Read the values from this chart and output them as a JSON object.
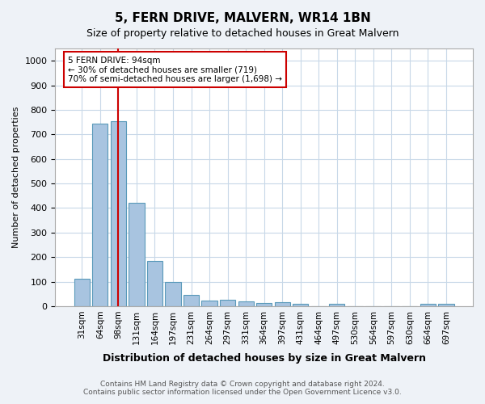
{
  "title": "5, FERN DRIVE, MALVERN, WR14 1BN",
  "subtitle": "Size of property relative to detached houses in Great Malvern",
  "xlabel": "Distribution of detached houses by size in Great Malvern",
  "ylabel": "Number of detached properties",
  "categories": [
    "31sqm",
    "64sqm",
    "98sqm",
    "131sqm",
    "164sqm",
    "197sqm",
    "231sqm",
    "264sqm",
    "297sqm",
    "331sqm",
    "364sqm",
    "397sqm",
    "431sqm",
    "464sqm",
    "497sqm",
    "530sqm",
    "564sqm",
    "597sqm",
    "630sqm",
    "664sqm",
    "697sqm"
  ],
  "values": [
    110,
    745,
    755,
    420,
    185,
    98,
    45,
    22,
    25,
    18,
    12,
    15,
    8,
    0,
    8,
    0,
    0,
    0,
    0,
    8,
    8
  ],
  "bar_color": "#a8c4e0",
  "bar_edge_color": "#5a9aba",
  "vline_x": 2,
  "vline_color": "#cc0000",
  "annotation_text": "5 FERN DRIVE: 94sqm\n← 30% of detached houses are smaller (719)\n70% of semi-detached houses are larger (1,698) →",
  "annotation_box_color": "#ffffff",
  "annotation_box_edge_color": "#cc0000",
  "ylim": [
    0,
    1050
  ],
  "yticks": [
    0,
    100,
    200,
    300,
    400,
    500,
    600,
    700,
    800,
    900,
    1000
  ],
  "footer_line1": "Contains HM Land Registry data © Crown copyright and database right 2024.",
  "footer_line2": "Contains public sector information licensed under the Open Government Licence v3.0.",
  "bg_color": "#eef2f7",
  "plot_bg_color": "#ffffff",
  "grid_color": "#c8d8e8"
}
